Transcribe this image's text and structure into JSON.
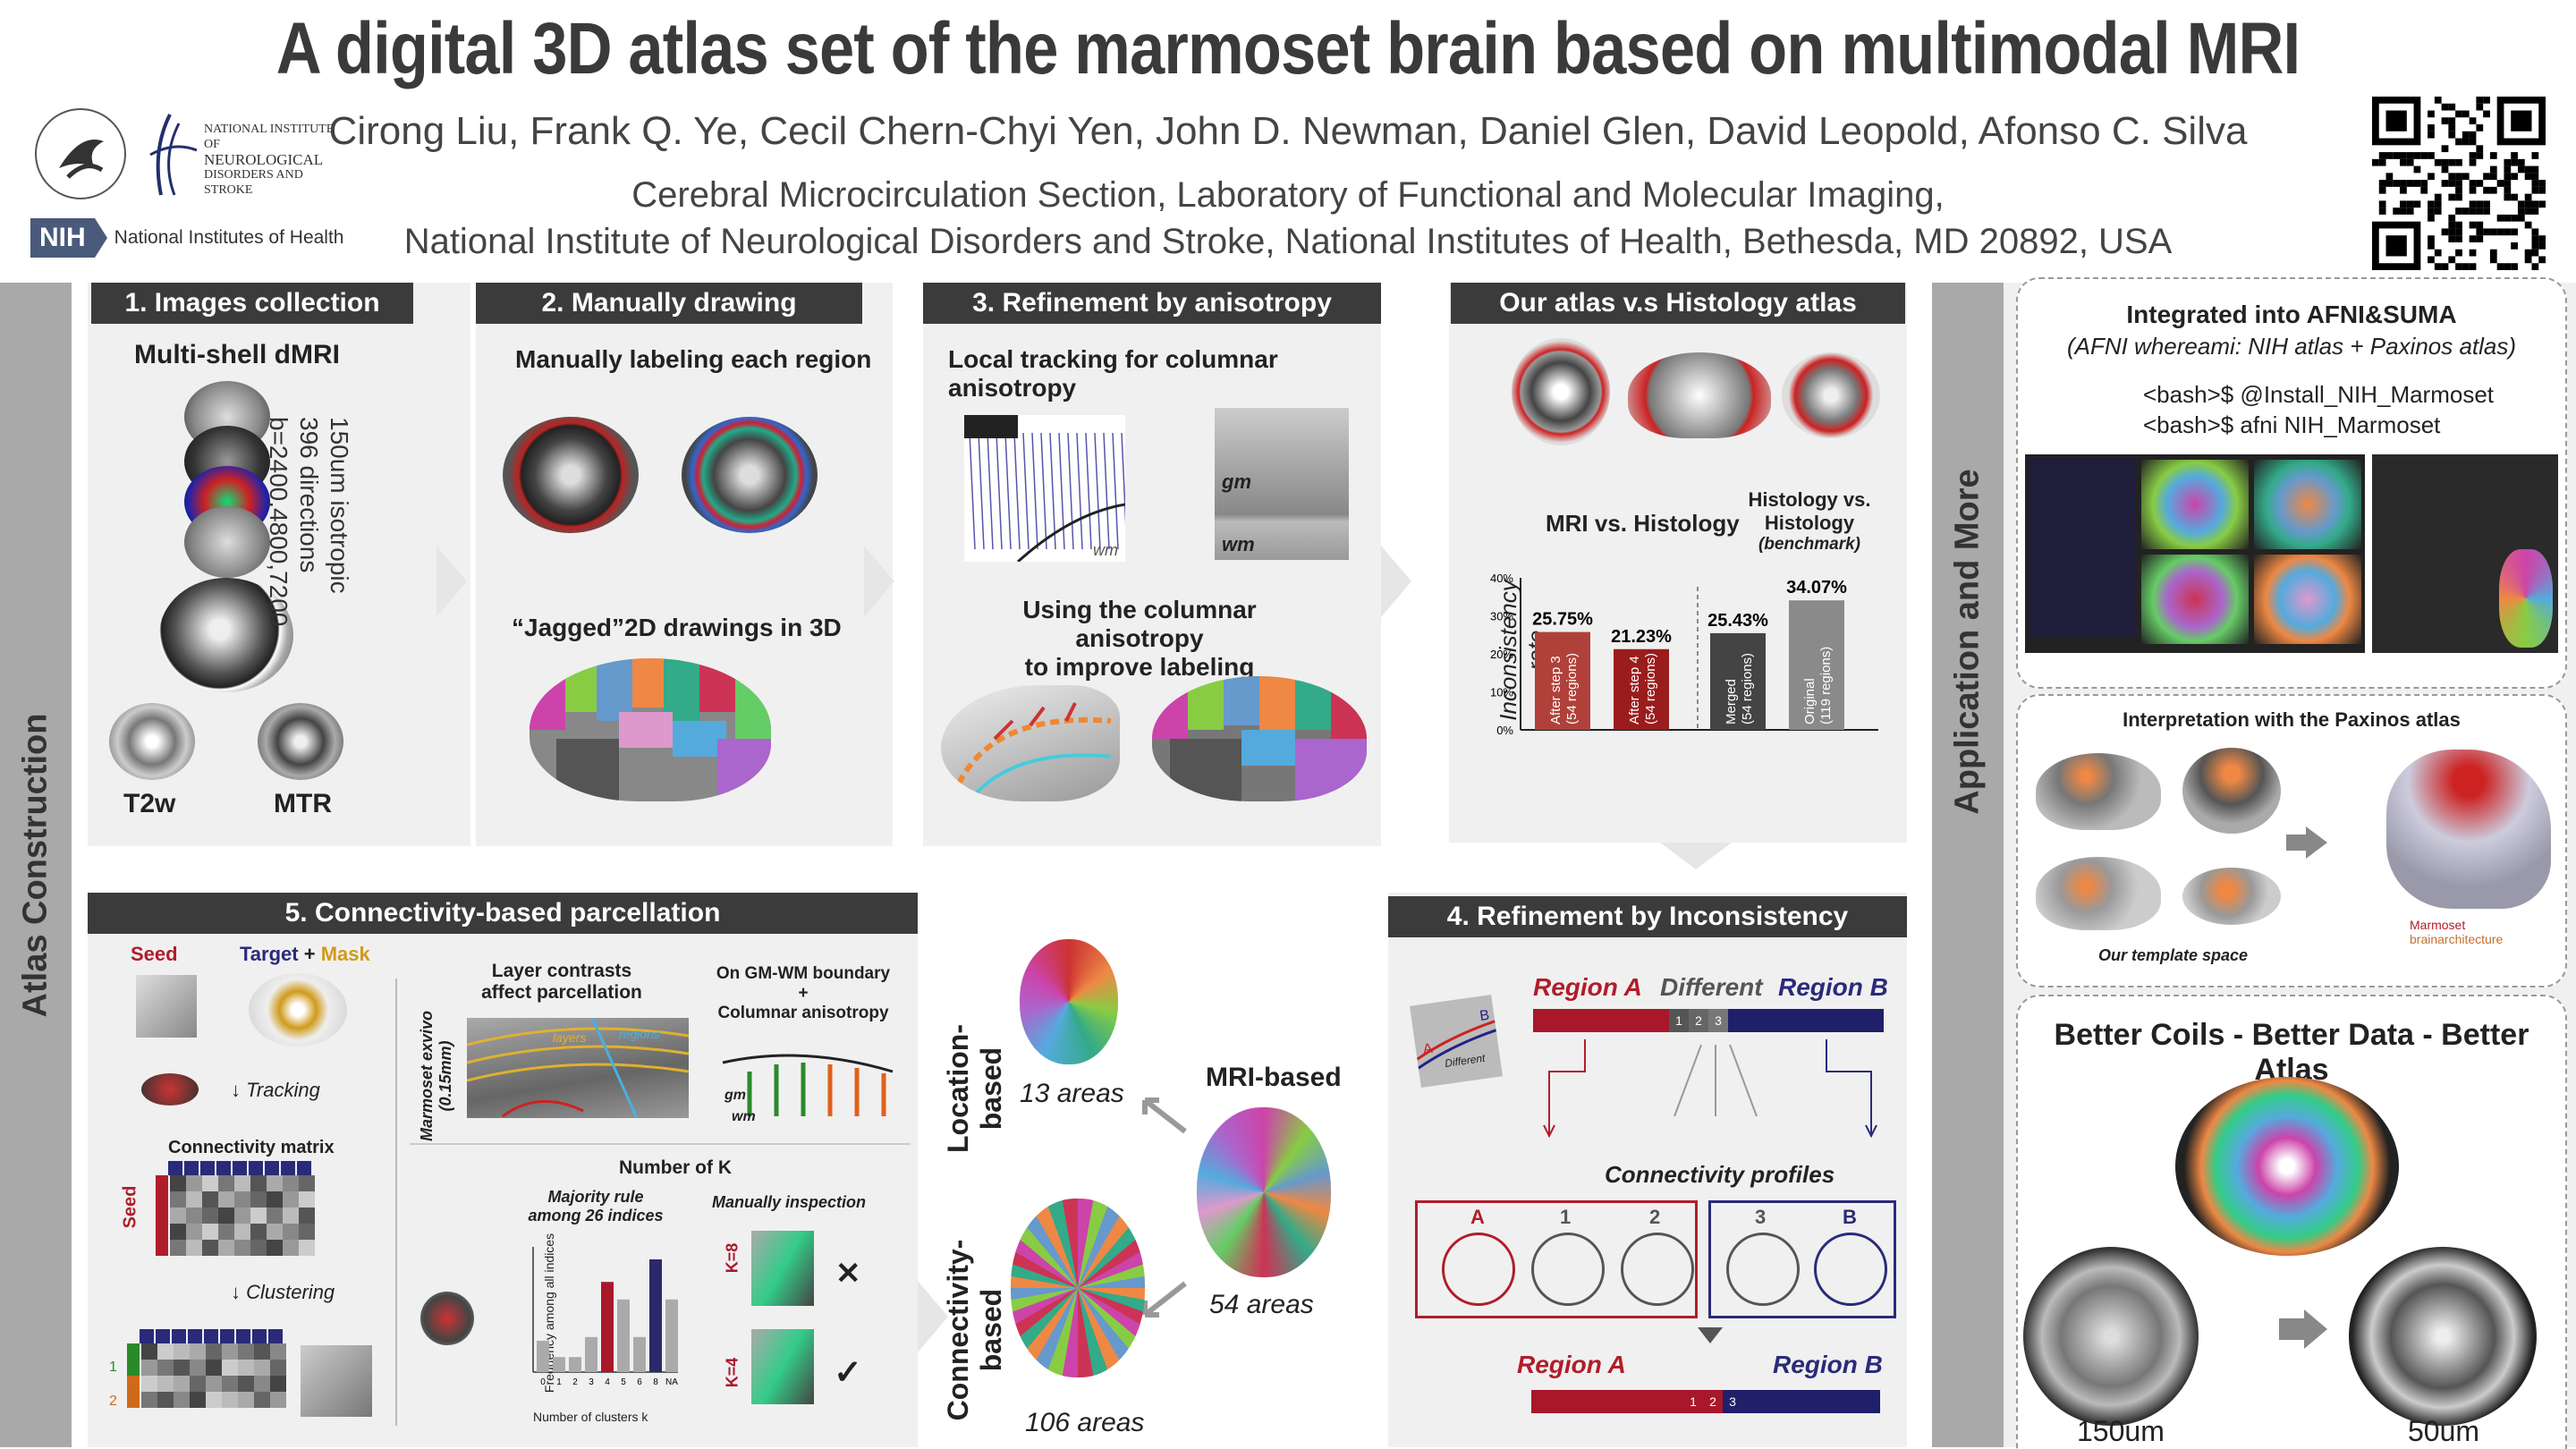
{
  "title": "A digital 3D atlas set of the marmoset brain based on multimodal MRI",
  "authors": "Cirong Liu, Frank Q. Ye, Cecil Chern-Chyi Yen, John D. Newman, Daniel Glen, David Leopold, Afonso C. Silva",
  "affiliation_line1": "Cerebral Microcirculation Section, Laboratory of Functional and Molecular Imaging,",
  "affiliation_line2": "National Institute of Neurological Disorders and Stroke, National Institutes of Health, Bethesda, MD 20892, USA",
  "logos": {
    "ninds": [
      "NATIONAL INSTITUTE OF",
      "NEUROLOGICAL",
      "DISORDERS AND STROKE"
    ],
    "nih_abbr": "NIH",
    "nih_name": "National Institutes of Health"
  },
  "sidebars": {
    "left": "Atlas Construction",
    "right": "Application and More"
  },
  "sections": {
    "s1": {
      "header": "1. Images collection",
      "subtitle": "Multi-shell dMRI",
      "params": [
        "150um isotropic",
        "396 directions",
        "b=2400,4800,7200"
      ],
      "t2w": "T2w",
      "mtr": "MTR"
    },
    "s2": {
      "header": "2. Manually drawing",
      "sub1": "Manually labeling each region",
      "sub2": "“Jagged”2D drawings in 3D"
    },
    "s3": {
      "header": "3. Refinement by anisotropy",
      "sub1": "Local tracking for columnar anisotropy",
      "sub2a": "Using the columnar anisotropy",
      "sub2b": "to improve labeling",
      "gm": "gm",
      "wm": "wm"
    },
    "s_hist": {
      "header": "Our atlas v.s Histology atlas",
      "label_mri": "MRI vs. Histology",
      "label_hist": "Histology vs. Histology",
      "label_bench": "(benchmark)",
      "ylabel": "Inconsistency rate"
    },
    "s4": {
      "header": "4. Refinement by Inconsistency",
      "region_a": "Region A",
      "different": "Different",
      "region_b": "Region B",
      "inset_label": "Different",
      "inset_a": "A",
      "inset_b": "B",
      "profiles": "Connectivity profiles",
      "profile_labels": [
        "A",
        "1",
        "2",
        "3",
        "B"
      ],
      "seg1": "1",
      "seg2": "2",
      "seg3": "3"
    },
    "s5": {
      "header": "5. Connectivity-based parcellation",
      "seed": "Seed",
      "target": "Target",
      "plus": "+",
      "mask": "Mask",
      "tracking": "Tracking",
      "matrix": "Connectivity matrix",
      "clustering": "Clustering",
      "layer1": "Layer contrasts",
      "layer2": "affect parcellation",
      "exvivo1": "Marmoset exvivo",
      "exvivo2": "(0.15mm)",
      "layers_lbl": "layers",
      "regions_lbl": "regions",
      "boundary1": "On GM-WM boundary",
      "boundary_plus": "+",
      "boundary2": "Columnar anisotropy",
      "gm": "gm",
      "wm": "wm",
      "numk": "Number of K",
      "majority1": "Majority rule",
      "majority2": "among 26 indices",
      "manual": "Manually inspection",
      "k8": "K=8",
      "k4": "K=4",
      "yl": "Frequency among all indices",
      "xl": "Number of clusters k",
      "cross": "✕",
      "check": "✓",
      "row1": "1",
      "row2": "2"
    },
    "center": {
      "location": "Location-based",
      "connectivity": "Connectivity-based",
      "mri": "MRI-based",
      "a13": "13 areas",
      "a54": "54 areas",
      "a106": "106 areas"
    },
    "afni": {
      "title": "Integrated into AFNI&SUMA",
      "subtitle": "(AFNI whereami: NIH atlas + Paxinos atlas)",
      "cmd1": "<bash>$ @Install_NIH_Marmoset",
      "cmd2": "<bash>$ afni NIH_Marmoset"
    },
    "paxinos": {
      "title": "Interpretation with the Paxinos atlas",
      "template": "Our template space",
      "mba1": "Marmoset",
      "mba2": "brainarchitecture"
    },
    "coils": {
      "title": "Better Coils - Better Data - Better Atlas",
      "l150": "150um",
      "l50": "50um"
    }
  },
  "chart_data": {
    "type": "bar",
    "ylabel": "Inconsistency rate",
    "ylim": [
      0,
      40
    ],
    "yticks": [
      "0%",
      "10%",
      "20%",
      "30%",
      "40%"
    ],
    "groups": [
      "MRI vs. Histology",
      "Histology vs. Histology (benchmark)"
    ],
    "categories": [
      "After step 3 (54 regions)",
      "After step 4 (54 regions)",
      "Merged (54 regions)",
      "Original (119 regions)"
    ],
    "values": [
      25.75,
      21.23,
      25.43,
      34.07
    ],
    "value_labels": [
      "25.75%",
      "21.23%",
      "25.43%",
      "34.07%"
    ],
    "colors": [
      "#b0413a",
      "#9b1c1c",
      "#444444",
      "#8a8a8a"
    ]
  },
  "chart_data_k": {
    "type": "bar",
    "xlabel": "Number of clusters k",
    "ylabel": "Frequency among all indices",
    "categories": [
      "0",
      "1",
      "2",
      "3",
      "4",
      "5",
      "6",
      "8",
      "NA"
    ],
    "values": [
      0.25,
      0.12,
      0.12,
      0.28,
      0.72,
      0.58,
      0.28,
      0.9,
      0.58
    ],
    "highlight": {
      "4": "#a8172a",
      "8": "#2a2a6a"
    }
  }
}
